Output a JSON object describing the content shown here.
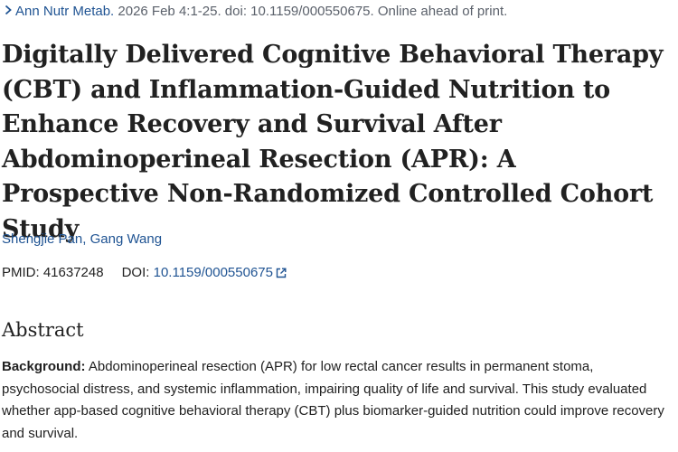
{
  "citation": {
    "journal": "Ann Nutr Metab.",
    "details": "2026 Feb 4:1-25. doi: 10.1159/000550675. Online ahead of print."
  },
  "title": "Digitally Delivered Cognitive Behavioral Therapy (CBT) and Inflammation-Guided Nutrition to Enhance Recovery and Survival After Abdominoperineal Resection (APR): A Prospective Non-Randomized Controlled Cohort Study",
  "authors": [
    {
      "name": "Shengjie Pan"
    },
    {
      "name": "Gang Wang"
    }
  ],
  "ids": {
    "pmid_label": "PMID:",
    "pmid": "41637248",
    "doi_label": "DOI:",
    "doi": "10.1159/000550675"
  },
  "abstract": {
    "heading": "Abstract",
    "background_label": "Background:",
    "background_text": "Abdominoperineal resection (APR) for low rectal cancer results in permanent stoma, psychosocial distress, and systemic inflammation, impairing quality of life and survival. This study evaluated whether app-based cognitive behavioral therapy (CBT) plus biomarker-guided nutrition could improve recovery and survival."
  },
  "colors": {
    "link": "#205493",
    "text": "#212121",
    "muted": "#5b616b"
  },
  "icons": {
    "citation": "chevron-right-icon",
    "doi_link": "external-link-icon"
  }
}
